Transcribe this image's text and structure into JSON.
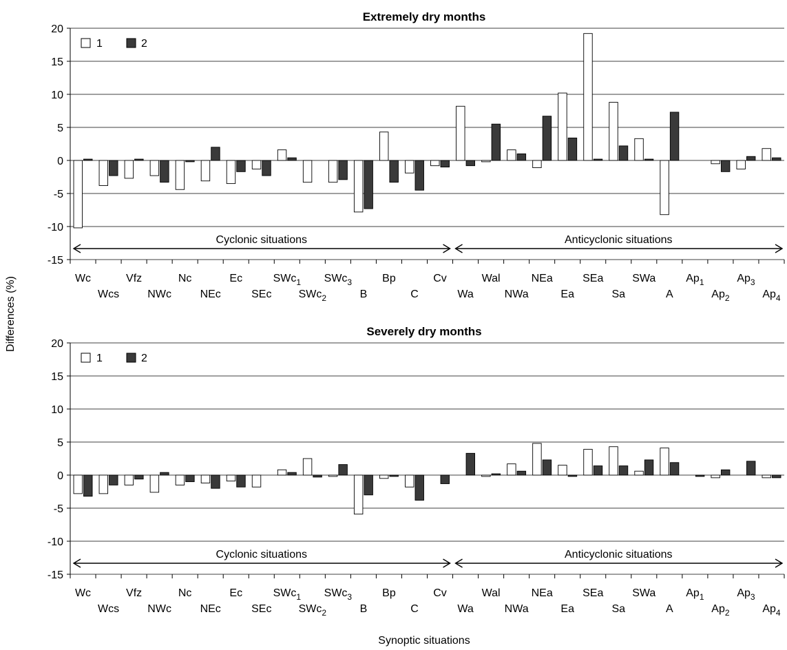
{
  "figure": {
    "ylabel": "Differences (%)",
    "xlabel": "Synoptic situations"
  },
  "chart_data": [
    {
      "type": "bar",
      "title": "Extremely dry months",
      "ylim": [
        -15,
        20
      ],
      "yticks": [
        "20",
        "15",
        "10",
        "5",
        "0",
        "-5",
        "-10",
        "-15"
      ],
      "grid": true,
      "legend_placement": "top-left",
      "categories": [
        [
          "Wc",
          ""
        ],
        [
          "Wcs",
          ""
        ],
        [
          "Vfz",
          ""
        ],
        [
          "NWc",
          ""
        ],
        [
          "Nc",
          ""
        ],
        [
          "NEc",
          ""
        ],
        [
          "Ec",
          ""
        ],
        [
          "SEc",
          ""
        ],
        [
          "SWc",
          "1"
        ],
        [
          "SWc",
          "2"
        ],
        [
          "SWc",
          "3"
        ],
        [
          "B",
          ""
        ],
        [
          "Bp",
          ""
        ],
        [
          "C",
          ""
        ],
        [
          "Cv",
          ""
        ],
        [
          "Wa",
          ""
        ],
        [
          "Wal",
          ""
        ],
        [
          "NWa",
          ""
        ],
        [
          "NEa",
          ""
        ],
        [
          "Ea",
          ""
        ],
        [
          "SEa",
          ""
        ],
        [
          "Sa",
          ""
        ],
        [
          "SWa",
          ""
        ],
        [
          "A",
          ""
        ],
        [
          "Ap",
          "1"
        ],
        [
          "Ap",
          "2"
        ],
        [
          "Ap",
          "3"
        ],
        [
          "Ap",
          "4"
        ]
      ],
      "series": [
        {
          "name": "1",
          "color": "#ffffff",
          "values": [
            -10.2,
            -3.8,
            -2.7,
            -2.3,
            -4.4,
            -3.1,
            -3.5,
            -1.3,
            1.6,
            -3.3,
            -3.3,
            -7.8,
            4.3,
            -1.9,
            -0.8,
            8.2,
            -0.2,
            1.6,
            -1.1,
            10.2,
            19.2,
            8.8,
            3.3,
            -8.2,
            0,
            -0.5,
            -1.3,
            1.8
          ]
        },
        {
          "name": "2",
          "color": "#3a3a3a",
          "values": [
            0.2,
            -2.3,
            0.2,
            -3.3,
            -0.2,
            2.0,
            -1.7,
            -2.3,
            0.4,
            0,
            -2.9,
            -7.3,
            -3.3,
            -4.5,
            -1.0,
            -0.8,
            5.5,
            1.0,
            6.7,
            3.4,
            0.2,
            2.2,
            0.2,
            7.3,
            0,
            -1.7,
            0.6,
            0.4
          ]
        }
      ],
      "annotations": {
        "cyclonic": "Cyclonic situations",
        "anticyclonic": "Anticyclonic situations"
      }
    },
    {
      "type": "bar",
      "title": "Severely dry months",
      "ylim": [
        -15,
        20
      ],
      "yticks": [
        "20",
        "15",
        "10",
        "5",
        "0",
        "-5",
        "-10",
        "-15"
      ],
      "grid": true,
      "legend_placement": "top-left",
      "categories": [
        [
          "Wc",
          ""
        ],
        [
          "Wcs",
          ""
        ],
        [
          "Vfz",
          ""
        ],
        [
          "NWc",
          ""
        ],
        [
          "Nc",
          ""
        ],
        [
          "NEc",
          ""
        ],
        [
          "Ec",
          ""
        ],
        [
          "SEc",
          ""
        ],
        [
          "SWc",
          "1"
        ],
        [
          "SWc",
          "2"
        ],
        [
          "SWc",
          "3"
        ],
        [
          "B",
          ""
        ],
        [
          "Bp",
          ""
        ],
        [
          "C",
          ""
        ],
        [
          "Cv",
          ""
        ],
        [
          "Wa",
          ""
        ],
        [
          "Wal",
          ""
        ],
        [
          "NWa",
          ""
        ],
        [
          "NEa",
          ""
        ],
        [
          "Ea",
          ""
        ],
        [
          "SEa",
          ""
        ],
        [
          "Sa",
          ""
        ],
        [
          "SWa",
          ""
        ],
        [
          "A",
          ""
        ],
        [
          "Ap",
          "1"
        ],
        [
          "Ap",
          "2"
        ],
        [
          "Ap",
          "3"
        ],
        [
          "Ap",
          "4"
        ]
      ],
      "series": [
        {
          "name": "1",
          "color": "#ffffff",
          "values": [
            -2.8,
            -2.8,
            -1.5,
            -2.6,
            -1.5,
            -1.2,
            -0.9,
            -1.8,
            0.8,
            2.5,
            -0.2,
            -5.9,
            -0.5,
            -1.8,
            0,
            0,
            -0.2,
            1.7,
            4.8,
            1.5,
            3.9,
            4.3,
            0.6,
            4.1,
            0,
            -0.4,
            0,
            -0.4
          ]
        },
        {
          "name": "2",
          "color": "#3a3a3a",
          "values": [
            -3.2,
            -1.5,
            -0.6,
            0.4,
            -1.0,
            -2.0,
            -1.8,
            0,
            0.4,
            -0.3,
            1.6,
            -3.0,
            -0.2,
            -3.8,
            -1.3,
            3.3,
            0.2,
            0.6,
            2.3,
            -0.2,
            1.4,
            1.4,
            2.3,
            1.9,
            -0.2,
            0.8,
            2.1,
            -0.4
          ]
        }
      ],
      "annotations": {
        "cyclonic": "Cyclonic situations",
        "anticyclonic": "Anticyclonic situations"
      }
    }
  ]
}
